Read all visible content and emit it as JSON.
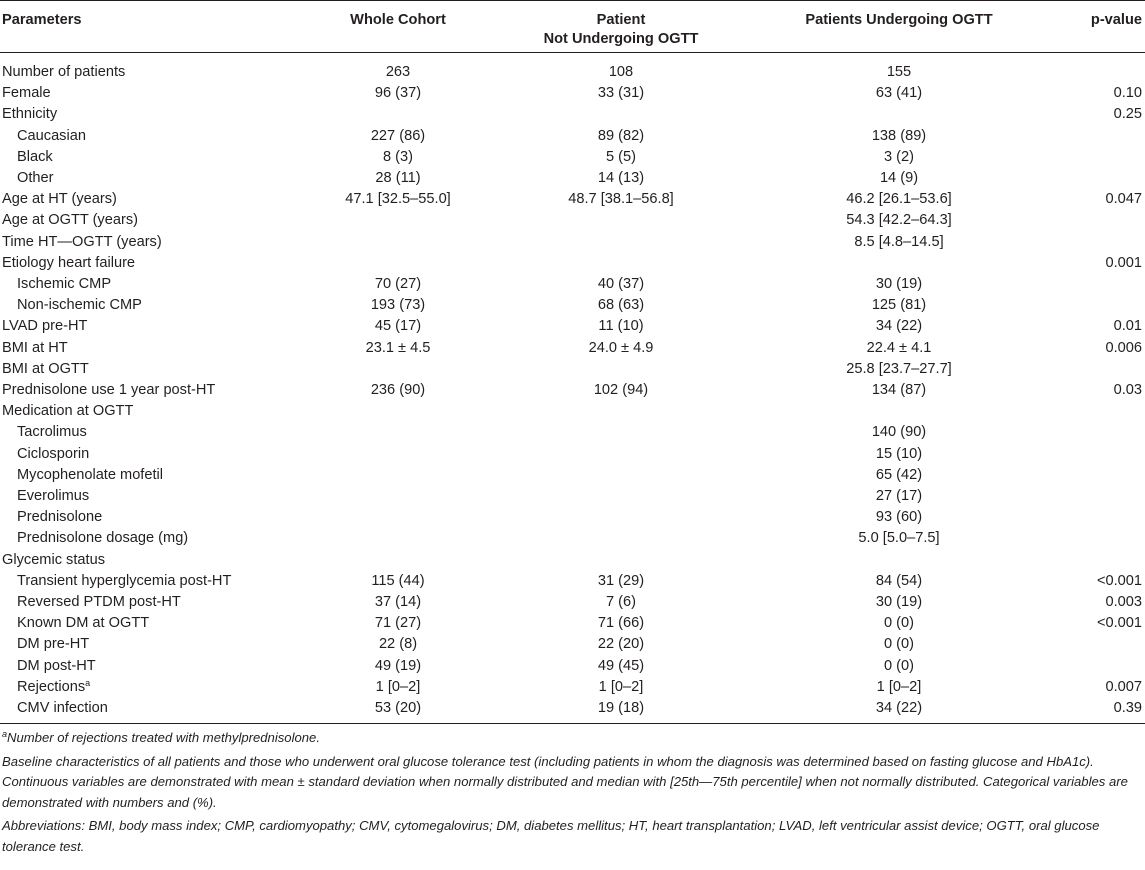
{
  "headers": {
    "parameters": "Parameters",
    "whole_cohort": "Whole Cohort",
    "not_ogtt_line1": "Patient",
    "not_ogtt_line2": "Not Undergoing OGTT",
    "ogtt": "Patients Undergoing OGTT",
    "pvalue": "p-value"
  },
  "rows": [
    {
      "label": "Number of patients",
      "whole": "263",
      "not_ogtt": "108",
      "ogtt": "155",
      "p": ""
    },
    {
      "label": "Female",
      "whole": "96 (37)",
      "not_ogtt": "33 (31)",
      "ogtt": "63 (41)",
      "p": "0.10"
    },
    {
      "label": "Ethnicity",
      "whole": "",
      "not_ogtt": "",
      "ogtt": "",
      "p": "0.25"
    },
    {
      "label": "Caucasian",
      "whole": "227 (86)",
      "not_ogtt": "89 (82)",
      "ogtt": "138 (89)",
      "p": ""
    },
    {
      "label": "Black",
      "whole": "8 (3)",
      "not_ogtt": "5 (5)",
      "ogtt": "3 (2)",
      "p": ""
    },
    {
      "label": "Other",
      "whole": "28 (11)",
      "not_ogtt": "14 (13)",
      "ogtt": "14 (9)",
      "p": ""
    },
    {
      "label": "Age at HT (years)",
      "whole": "47.1 [32.5–55.0]",
      "not_ogtt": "48.7 [38.1–56.8]",
      "ogtt": "46.2 [26.1–53.6]",
      "p": "0.047"
    },
    {
      "label": "Age at OGTT (years)",
      "whole": "",
      "not_ogtt": "",
      "ogtt": "54.3 [42.2–64.3]",
      "p": ""
    },
    {
      "label": "Time HT—OGTT (years)",
      "whole": "",
      "not_ogtt": "",
      "ogtt": "8.5 [4.8–14.5]",
      "p": ""
    },
    {
      "label": "Etiology heart failure",
      "whole": "",
      "not_ogtt": "",
      "ogtt": "",
      "p": "0.001"
    },
    {
      "label": "Ischemic CMP",
      "whole": "70 (27)",
      "not_ogtt": "40 (37)",
      "ogtt": "30 (19)",
      "p": ""
    },
    {
      "label": "Non-ischemic CMP",
      "whole": "193 (73)",
      "not_ogtt": "68 (63)",
      "ogtt": "125 (81)",
      "p": ""
    },
    {
      "label": "LVAD pre-HT",
      "whole": "45 (17)",
      "not_ogtt": "11 (10)",
      "ogtt": "34 (22)",
      "p": "0.01"
    },
    {
      "label": "BMI at HT",
      "whole": "23.1 ± 4.5",
      "not_ogtt": "24.0 ± 4.9",
      "ogtt": "22.4 ± 4.1",
      "p": "0.006"
    },
    {
      "label": "BMI at OGTT",
      "whole": "",
      "not_ogtt": "",
      "ogtt": "25.8 [23.7–27.7]",
      "p": ""
    },
    {
      "label": "Prednisolone use 1 year post-HT",
      "whole": "236 (90)",
      "not_ogtt": "102 (94)",
      "ogtt": "134 (87)",
      "p": "0.03"
    },
    {
      "label": "Medication at OGTT",
      "whole": "",
      "not_ogtt": "",
      "ogtt": "",
      "p": ""
    },
    {
      "label": "Tacrolimus",
      "whole": "",
      "not_ogtt": "",
      "ogtt": "140 (90)",
      "p": ""
    },
    {
      "label": "Ciclosporin",
      "whole": "",
      "not_ogtt": "",
      "ogtt": "15 (10)",
      "p": ""
    },
    {
      "label": "Mycophenolate mofetil",
      "whole": "",
      "not_ogtt": "",
      "ogtt": "65 (42)",
      "p": ""
    },
    {
      "label": "Everolimus",
      "whole": "",
      "not_ogtt": "",
      "ogtt": "27 (17)",
      "p": ""
    },
    {
      "label": "Prednisolone",
      "whole": "",
      "not_ogtt": "",
      "ogtt": "93 (60)",
      "p": ""
    },
    {
      "label": "Prednisolone dosage (mg)",
      "whole": "",
      "not_ogtt": "",
      "ogtt": "5.0 [5.0–7.5]",
      "p": ""
    },
    {
      "label": "Glycemic status",
      "whole": "",
      "not_ogtt": "",
      "ogtt": "",
      "p": ""
    },
    {
      "label": "Transient hyperglycemia post-HT",
      "whole": "115 (44)",
      "not_ogtt": "31 (29)",
      "ogtt": "84 (54)",
      "p": "<0.001"
    },
    {
      "label": "Reversed PTDM post-HT",
      "whole": "37 (14)",
      "not_ogtt": "7 (6)",
      "ogtt": "30 (19)",
      "p": "0.003"
    },
    {
      "label": "Known DM at OGTT",
      "whole": "71 (27)",
      "not_ogtt": "71 (66)",
      "ogtt": "0 (0)",
      "p": "<0.001"
    },
    {
      "label": "DM pre-HT",
      "whole": "22 (8)",
      "not_ogtt": "22 (20)",
      "ogtt": "0 (0)",
      "p": ""
    },
    {
      "label": "DM post-HT",
      "whole": "49 (19)",
      "not_ogtt": "49 (45)",
      "ogtt": "0 (0)",
      "p": ""
    },
    {
      "label": "Rejections",
      "sup": "a",
      "whole": "1 [0–2]",
      "not_ogtt": "1 [0–2]",
      "ogtt": "1 [0–2]",
      "p": "0.007"
    },
    {
      "label": "CMV infection",
      "whole": "53 (20)",
      "not_ogtt": "19 (18)",
      "ogtt": "34 (22)",
      "p": "0.39"
    }
  ],
  "notes": {
    "footnote_mark": "a",
    "footnote_text": "Number of rejections treated with methylprednisolone.",
    "caption": "Baseline characteristics of all patients and those who underwent oral glucose tolerance test (including patients in whom the diagnosis was determined based on fasting glucose and HbA1c). Continuous variables are demonstrated with mean ± standard deviation when normally distributed and median with [25th—75th percentile] when not normally distributed. Categorical variables are demonstrated with numbers and (%).",
    "abbreviations": "Abbreviations: BMI, body mass index; CMP, cardiomyopathy; CMV, cytomegalovirus; DM, diabetes mellitus; HT, heart transplantation; LVAD, left ventricular assist device; OGTT, oral glucose tolerance test."
  }
}
